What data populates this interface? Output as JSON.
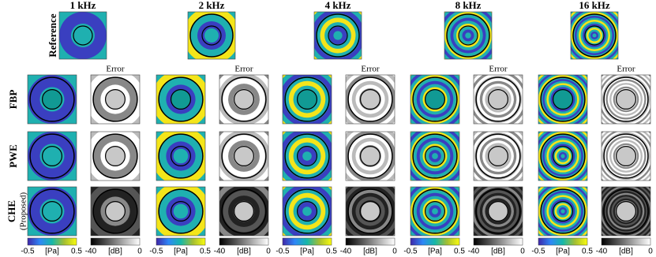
{
  "row_labels": [
    {
      "label": "Reference"
    },
    {
      "label": "FBP"
    },
    {
      "label": "PWE"
    },
    {
      "label": "CHE",
      "sublabel": "(Proposed)"
    }
  ],
  "columns": [
    {
      "frequency": "1 kHz",
      "error_title": "Error",
      "field_colorbar": {
        "min": -0.5,
        "unit": "[Pa]",
        "max": 0.5
      },
      "error_colorbar": {
        "min": -40,
        "unit": "[dB]",
        "max": 0
      }
    },
    {
      "frequency": "2 kHz",
      "error_title": "Error",
      "field_colorbar": {
        "min": -0.5,
        "unit": "[Pa]",
        "max": 0.5
      },
      "error_colorbar": {
        "min": -40,
        "unit": "[dB]",
        "max": 0
      }
    },
    {
      "frequency": "4 kHz",
      "error_title": "Error",
      "field_colorbar": {
        "min": -0.5,
        "unit": "[Pa]",
        "max": 0.5
      },
      "error_colorbar": {
        "min": -40,
        "unit": "[dB]",
        "max": 0
      }
    },
    {
      "frequency": "8 kHz",
      "error_title": "Error",
      "field_colorbar": {
        "min": -0.5,
        "unit": "[Pa]",
        "max": 0.5
      },
      "error_colorbar": {
        "min": -40,
        "unit": "[dB]",
        "max": 0
      }
    },
    {
      "frequency": "16 kHz",
      "error_title": "Error",
      "field_colorbar": {
        "min": -0.5,
        "unit": "[Pa]",
        "max": 0.5
      },
      "error_colorbar": {
        "min": -40,
        "unit": "[dB]",
        "max": 0
      }
    }
  ]
}
